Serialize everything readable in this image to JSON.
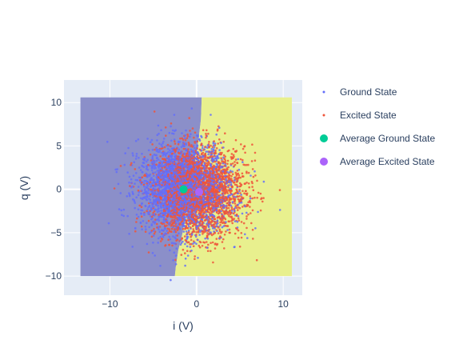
{
  "chart_data": {
    "type": "scatter",
    "title": "",
    "xlabel": "i (V)",
    "ylabel": "q (V)",
    "xlim": [
      -15.3,
      12.2
    ],
    "ylim": [
      -12.2,
      12.6
    ],
    "x_ticks": [
      -10,
      0,
      10
    ],
    "x_tick_labels": [
      "−10",
      "0",
      "10"
    ],
    "y_ticks": [
      -10,
      -5,
      0,
      5,
      10
    ],
    "y_tick_labels": [
      "−10",
      "−5",
      "0",
      "5",
      "10"
    ],
    "grid": true,
    "legend_position": "right",
    "background_color": "#e5ecf6",
    "series": [
      {
        "name": "Ground State",
        "color": "#636efa",
        "marker": "dot",
        "center": [
          -1.5,
          0.0
        ],
        "spread": [
          2.6,
          2.6
        ],
        "approx_points": 5000
      },
      {
        "name": "Excited State",
        "color": "#ef553b",
        "marker": "dot",
        "center": [
          0.3,
          -0.3
        ],
        "spread": [
          2.6,
          2.6
        ],
        "approx_points": 5000
      },
      {
        "name": "Average Ground State",
        "color": "#00cc96",
        "marker": "large-dot",
        "x": [
          -1.5
        ],
        "y": [
          0.0
        ]
      },
      {
        "name": "Average Excited State",
        "color": "#ab63fa",
        "marker": "large-dot",
        "x": [
          0.3
        ],
        "y": [
          -0.3
        ]
      }
    ],
    "decision_regions": {
      "range_x": [
        -13.4,
        11.0
      ],
      "range_y": [
        -10.0,
        10.6
      ],
      "ground_region_color": "#8b8fc9",
      "excited_region_color": "#e8f08e",
      "boundary": [
        {
          "y": 10.6,
          "x": 0.6
        },
        {
          "y": 8.0,
          "x": 0.5
        },
        {
          "y": 5.5,
          "x": 0.2
        },
        {
          "y": 3.0,
          "x": -0.3
        },
        {
          "y": 1.0,
          "x": -0.6
        },
        {
          "y": -1.0,
          "x": -1.0
        },
        {
          "y": -3.0,
          "x": -1.3
        },
        {
          "y": -5.0,
          "x": -1.6
        },
        {
          "y": -7.0,
          "x": -2.1
        },
        {
          "y": -9.0,
          "x": -2.4
        },
        {
          "y": -10.0,
          "x": -2.5
        }
      ]
    }
  }
}
